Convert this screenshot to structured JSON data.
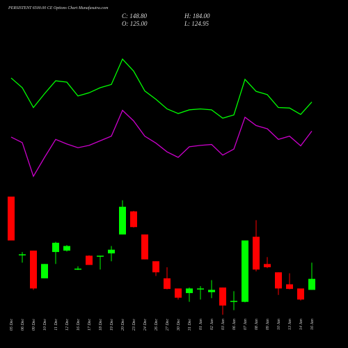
{
  "chart_data": {
    "type": "candlestick",
    "title": "PERSISTENT 6500.00 CE Options Chart Munafasutra.com",
    "annotations": [
      "C: 148.80",
      "H: 184.00",
      "O: 125.00",
      "L: 124.95"
    ],
    "categories": [
      "05 Dec",
      "06 Dec",
      "09 Dec",
      "10 Dec",
      "11 Dec",
      "12 Dec",
      "16 Dec",
      "17 Dec",
      "18 Dec",
      "19 Dec",
      "20 Dec",
      "23 Dec",
      "24 Dec",
      "26 Dec",
      "27 Dec",
      "30 Dec",
      "31 Dec",
      "01 Jan",
      "02 Jan",
      "03 Jan",
      "06 Jan",
      "07 Jan",
      "08 Jan",
      "09 Jan",
      "10 Jan",
      "13 Jan",
      "14 Jan",
      "16 Jan"
    ],
    "open": [
      327,
      202,
      210,
      150,
      207,
      210,
      170,
      199,
      198,
      204,
      245,
      295,
      245,
      187,
      150,
      128,
      118,
      127,
      120,
      130,
      100,
      99,
      240,
      181,
      163,
      137,
      128,
      125
    ],
    "high": [
      327,
      207,
      210,
      181,
      229,
      222,
      176,
      200,
      199,
      220,
      319,
      296,
      245,
      187,
      174,
      128,
      130,
      133,
      146,
      130,
      122,
      232,
      276,
      196,
      163,
      161,
      128,
      184
    ],
    "low": [
      232,
      184,
      125,
      150,
      181,
      208,
      168,
      179,
      169,
      187,
      245,
      260,
      191,
      155,
      126,
      104,
      99,
      104,
      107,
      71,
      81,
      98,
      165,
      172,
      114,
      126,
      102,
      124.95
    ],
    "close": [
      232,
      202,
      128,
      181,
      227,
      220,
      171,
      179,
      199,
      212,
      305,
      261,
      191,
      163,
      127,
      108,
      128,
      128,
      125,
      91,
      101,
      232,
      169,
      174,
      128,
      127,
      104,
      148.8
    ],
    "up_color": "#00ff00",
    "down_color": "#ff0000",
    "series": [
      {
        "color": "#00ff00",
        "values": [
          584,
          563,
          520,
          550,
          578,
          575,
          545,
          552,
          563,
          570,
          625,
          599,
          556,
          538,
          517,
          507,
          515,
          517,
          515,
          497,
          504,
          581,
          555,
          548,
          520,
          519,
          505,
          532
        ]
      },
      {
        "color": "#cc00cc",
        "values": [
          456,
          444,
          371,
          412,
          451,
          441,
          433,
          438,
          448,
          458,
          514,
          491,
          458,
          443,
          424,
          412,
          435,
          438,
          440,
          417,
          430,
          499,
          481,
          474,
          451,
          458,
          437,
          469
        ]
      }
    ],
    "ylim": [
      -1,
      753
    ]
  }
}
